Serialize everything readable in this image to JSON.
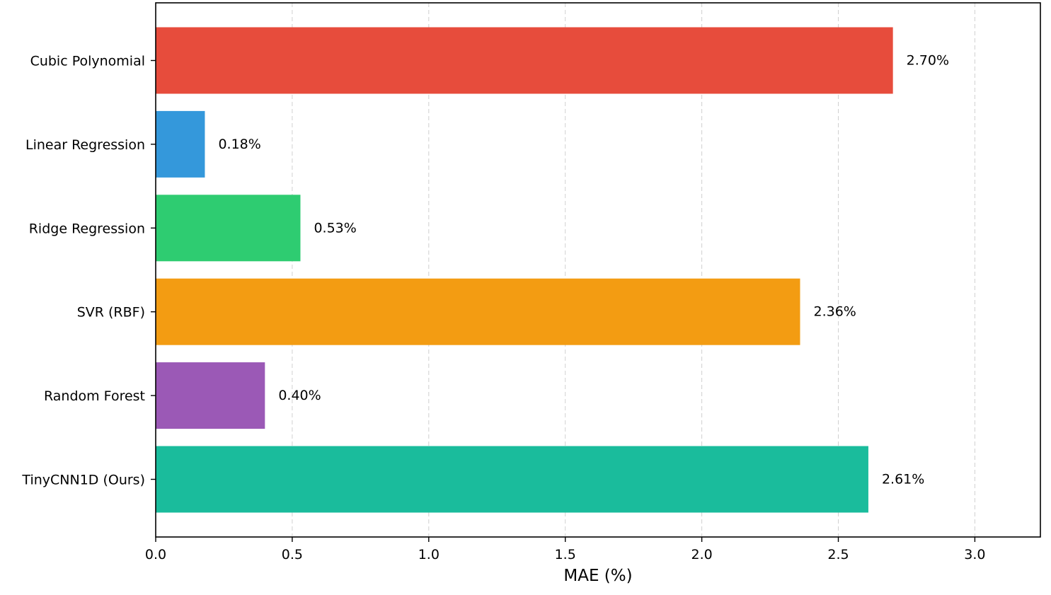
{
  "chart_data": {
    "type": "bar",
    "orientation": "horizontal",
    "categories": [
      "Cubic Polynomial",
      "Linear Regression",
      "Ridge Regression",
      "SVR (RBF)",
      "Random Forest",
      "TinyCNN1D (Ours)"
    ],
    "values": [
      2.7,
      0.18,
      0.53,
      2.36,
      0.4,
      2.61
    ],
    "value_labels": [
      "2.70%",
      "0.18%",
      "0.53%",
      "2.36%",
      "0.40%",
      "2.61%"
    ],
    "colors": [
      "#e74c3c",
      "#3498db",
      "#2ecc71",
      "#f39c12",
      "#9b59b6",
      "#1abc9c"
    ],
    "xlabel": "MAE (%)",
    "ylabel": "",
    "title": "",
    "xlim": [
      0,
      3.24
    ],
    "xticks": [
      0.0,
      0.5,
      1.0,
      1.5,
      2.0,
      2.5,
      3.0
    ],
    "xtick_labels": [
      "0.0",
      "0.5",
      "1.0",
      "1.5",
      "2.0",
      "2.5",
      "3.0"
    ],
    "grid": "x-dashed",
    "legend": "none"
  }
}
